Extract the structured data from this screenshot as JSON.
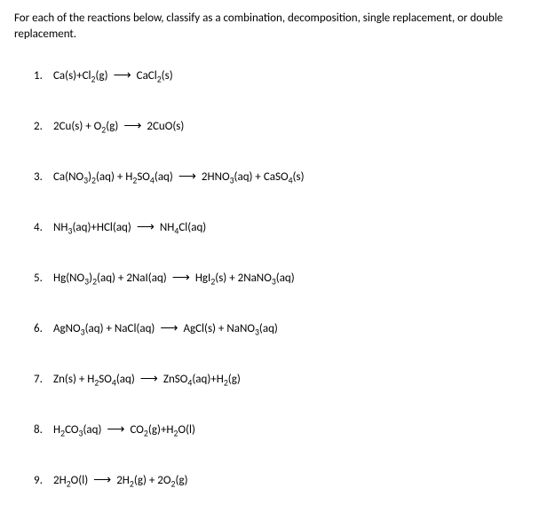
{
  "instructions": "For each of the reactions below, classify as a combination, decomposition, single replacement, or double replacement.",
  "problems": [
    {
      "num": "1.",
      "left": "Ca(s)+Cl<sub>2</sub>(g)",
      "right": "CaCl<sub>2</sub>(s)"
    },
    {
      "num": "2.",
      "left": "2Cu(s) + O<sub>2</sub>(g)",
      "right": "2CuO(s)"
    },
    {
      "num": "3.",
      "left": "Ca(NO<sub>3</sub>)<sub>2</sub>(aq) + H<sub>2</sub>SO<sub>4</sub>(aq)",
      "right": "2HNO<sub>3</sub>(aq) + CaSO<sub>4</sub>(s)"
    },
    {
      "num": "4.",
      "left": "NH<sub>3</sub>(aq)+HCl(aq)",
      "right": "NH<sub>4</sub>Cl(aq)"
    },
    {
      "num": "5.",
      "left": "Hg(NO<sub>3</sub>)<sub>2</sub>(aq) + 2NaI(aq)",
      "right": "HgI<sub>2</sub>(s) + 2NaNO<sub>3</sub>(aq)"
    },
    {
      "num": "6.",
      "left": "AgNO<sub>3</sub>(aq) + NaCl(aq)",
      "right": "AgCl(s) + NaNO<sub>3</sub>(aq)"
    },
    {
      "num": "7.",
      "left": "Zn(s) + H<sub>2</sub>SO<sub>4</sub>(aq)",
      "right": "ZnSO<sub>4</sub>(aq)+H<sub>2</sub>(g)"
    },
    {
      "num": "8.",
      "left": "H<sub>2</sub>CO<sub>3</sub>(aq)",
      "right": "CO<sub>2</sub>(g)+H<sub>2</sub>O(l)"
    },
    {
      "num": "9.",
      "left": "2H<sub>2</sub>O(l)",
      "right": "2H<sub>2</sub>(g) + 2O<sub>2</sub>(g)"
    }
  ],
  "arrow": "⟶",
  "colors": {
    "text": "#000000",
    "background": "#ffffff"
  },
  "fonts": {
    "body_size": 13
  }
}
